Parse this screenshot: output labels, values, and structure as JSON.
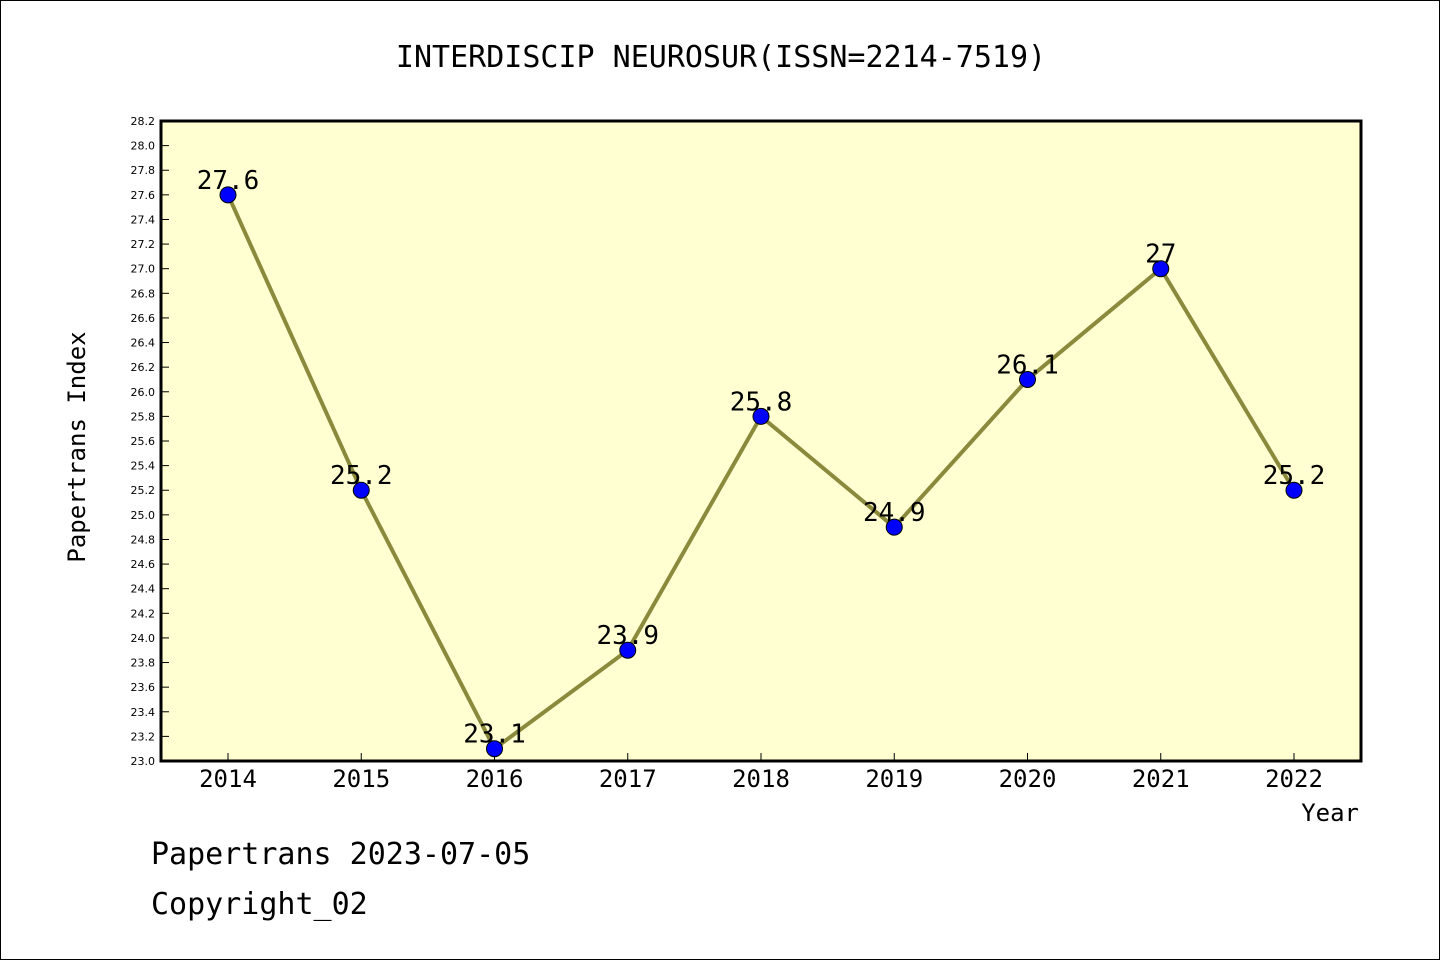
{
  "chart_data": {
    "type": "line",
    "title": "INTERDISCIP NEUROSUR(ISSN=2214-7519)",
    "xlabel": "Year",
    "ylabel": "Papertrans Index",
    "categories": [
      "2014",
      "2015",
      "2016",
      "2017",
      "2018",
      "2019",
      "2020",
      "2021",
      "2022"
    ],
    "series": [
      {
        "values": [
          27.6,
          25.2,
          23.1,
          23.9,
          25.8,
          24.9,
          26.1,
          27.0,
          25.2
        ],
        "data_labels": [
          "27.6",
          "25.2",
          "23.1",
          "23.9",
          "25.8",
          "24.9",
          "26.1",
          "27",
          "25.2"
        ]
      }
    ],
    "ylim": [
      23.0,
      28.2
    ],
    "ytick_step": 0.2,
    "grid": false,
    "colors": {
      "plot_background": "#ffffd2",
      "line": "#8b8a3c",
      "marker": "#0000ff"
    }
  },
  "footer": {
    "line1": "Papertrans 2023-07-05",
    "line2": "Copyright_02"
  }
}
